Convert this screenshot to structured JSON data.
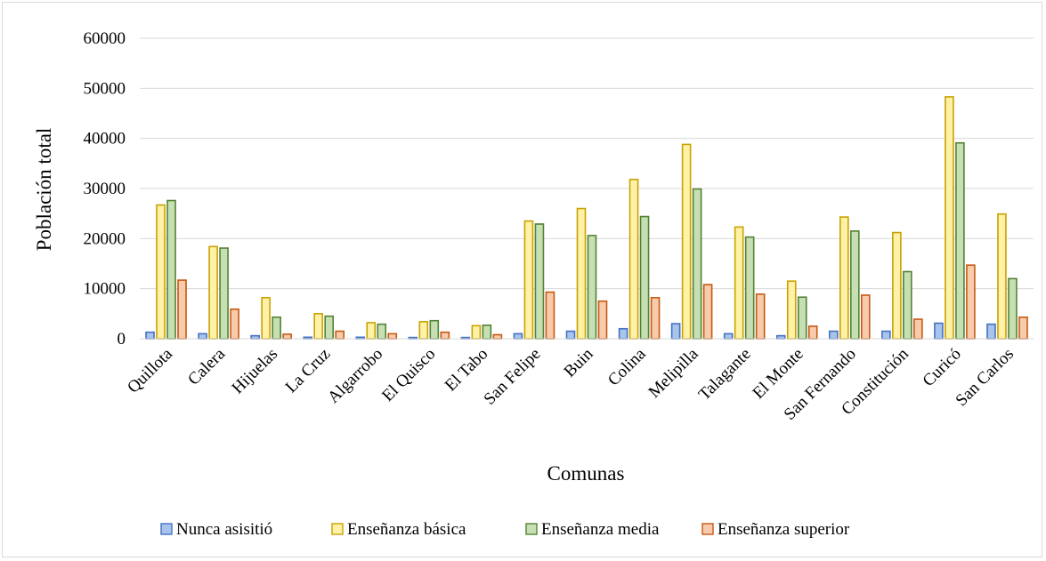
{
  "chart_data": {
    "type": "bar",
    "title": "",
    "xlabel": "Comunas",
    "ylabel": "Población total",
    "ylim": [
      0,
      60000
    ],
    "yticks": [
      0,
      10000,
      20000,
      30000,
      40000,
      50000,
      60000
    ],
    "grid": true,
    "legend_position": "bottom",
    "categories": [
      "Quillota",
      "Calera",
      "Hijuelas",
      "La Cruz",
      "Algarrobo",
      "El Quisco",
      "El Tabo",
      "San Felipe",
      "Buin",
      "Colina",
      "Melipilla",
      "Talagante",
      "El Monte",
      "San Fernando",
      "Constitución",
      "Curicó",
      "San Carlos"
    ],
    "series": [
      {
        "name": "Nunca asisitió",
        "fill": "#a9c4eb",
        "stroke": "#4472c4",
        "values": [
          1300,
          1000,
          600,
          300,
          300,
          250,
          250,
          1000,
          1500,
          2000,
          3000,
          1000,
          600,
          1500,
          1500,
          3100,
          2900
        ]
      },
      {
        "name": "Enseñanza básica",
        "fill": "#fff2a8",
        "stroke": "#c9a200",
        "values": [
          26700,
          18400,
          8200,
          5000,
          3200,
          3400,
          2600,
          23500,
          26000,
          31800,
          38800,
          22300,
          11500,
          24300,
          21200,
          48300,
          24900
        ]
      },
      {
        "name": "Enseñanza media",
        "fill": "#c6e0b4",
        "stroke": "#548235",
        "values": [
          27600,
          18100,
          4300,
          4500,
          2900,
          3600,
          2700,
          22900,
          20600,
          24400,
          29900,
          20300,
          8300,
          21500,
          13400,
          39100,
          12000
        ]
      },
      {
        "name": "Enseñanza superior",
        "fill": "#f8cbad",
        "stroke": "#c55a11",
        "values": [
          11700,
          5900,
          900,
          1500,
          1000,
          1300,
          800,
          9300,
          7500,
          8200,
          10800,
          8900,
          2500,
          8700,
          3900,
          14700,
          4300
        ]
      }
    ]
  }
}
